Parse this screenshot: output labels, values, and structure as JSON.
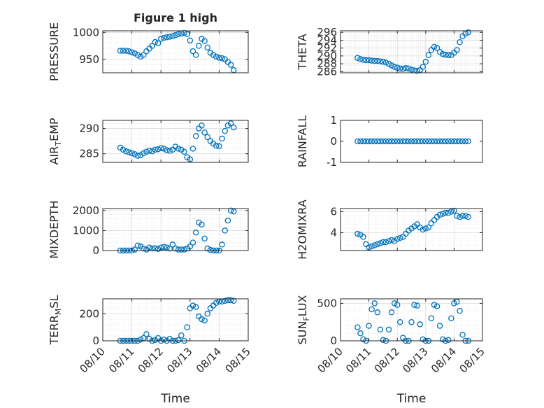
{
  "figure": {
    "title": "Figure 1 high",
    "xlabel_left": "Time",
    "xlabel_right": "Time"
  },
  "style": {
    "marker_color": "#0072BD",
    "axis_color": "#262626",
    "grid_color": "#dcdcdc"
  },
  "chart_data": [
    {
      "type": "scatter",
      "id": "pressure",
      "title": "Figure 1 high",
      "ylabel": "PRESSURE",
      "xlabel": "",
      "xticks": [
        "08/10",
        "08/11",
        "08/12",
        "08/13",
        "08/14",
        "08/15"
      ],
      "xlim": [
        0,
        5
      ],
      "ylim": [
        925,
        1003
      ],
      "yticks": [
        950,
        1000
      ],
      "grid": true,
      "x": [
        0.6,
        0.7,
        0.8,
        0.9,
        1.0,
        1.1,
        1.2,
        1.3,
        1.4,
        1.5,
        1.6,
        1.7,
        1.8,
        1.9,
        2.0,
        2.1,
        2.2,
        2.3,
        2.4,
        2.5,
        2.6,
        2.7,
        2.8,
        2.9,
        3.0,
        3.1,
        3.2,
        3.3,
        3.4,
        3.5,
        3.6,
        3.7,
        3.8,
        3.9,
        4.0,
        4.1,
        4.2,
        4.3,
        4.4,
        4.5
      ],
      "y": [
        966,
        966,
        966,
        965,
        963,
        961,
        958,
        955,
        958,
        965,
        970,
        975,
        982,
        980,
        988,
        990,
        991,
        992,
        993,
        995,
        997,
        998,
        999,
        997,
        985,
        965,
        958,
        975,
        988,
        984,
        972,
        962,
        958,
        955,
        953,
        952,
        950,
        945,
        940,
        930
      ]
    },
    {
      "type": "scatter",
      "id": "theta",
      "title": "",
      "ylabel": "THETA",
      "xlabel": "",
      "xticks": [
        "08/10",
        "08/11",
        "08/12",
        "08/13",
        "08/14",
        "08/15"
      ],
      "xlim": [
        0,
        5
      ],
      "ylim": [
        285.7,
        296.4
      ],
      "yticks": [
        286,
        288,
        290,
        292,
        294,
        296
      ],
      "grid": true,
      "x": [
        0.6,
        0.7,
        0.8,
        0.9,
        1.0,
        1.1,
        1.2,
        1.3,
        1.4,
        1.5,
        1.6,
        1.7,
        1.8,
        1.9,
        2.0,
        2.1,
        2.2,
        2.3,
        2.4,
        2.5,
        2.6,
        2.7,
        2.8,
        2.9,
        3.0,
        3.1,
        3.2,
        3.3,
        3.4,
        3.5,
        3.6,
        3.7,
        3.8,
        3.9,
        4.0,
        4.1,
        4.2,
        4.3,
        4.4,
        4.5
      ],
      "y": [
        289.5,
        289.2,
        289.0,
        288.9,
        288.9,
        288.8,
        288.7,
        288.7,
        288.6,
        288.5,
        288.3,
        288.0,
        287.6,
        287.2,
        287.0,
        286.8,
        286.7,
        286.9,
        286.8,
        286.5,
        286.3,
        286.2,
        286.4,
        287.2,
        288.5,
        290.2,
        291.5,
        292.3,
        292.0,
        291.0,
        290.5,
        290.3,
        290.2,
        290.2,
        290.8,
        291.5,
        293.5,
        295.0,
        295.7,
        296.0
      ]
    },
    {
      "type": "scatter",
      "id": "air_temp",
      "title": "",
      "ylabel": "AIR_TEMP",
      "xlabel": "",
      "xticks": [
        "08/10",
        "08/11",
        "08/12",
        "08/13",
        "08/14",
        "08/15"
      ],
      "xlim": [
        0,
        5
      ],
      "ylim": [
        283.3,
        291.6
      ],
      "yticks": [
        285,
        290
      ],
      "grid": true,
      "x": [
        0.6,
        0.7,
        0.8,
        0.9,
        1.0,
        1.1,
        1.2,
        1.3,
        1.4,
        1.5,
        1.6,
        1.7,
        1.8,
        1.9,
        2.0,
        2.1,
        2.2,
        2.3,
        2.4,
        2.5,
        2.6,
        2.7,
        2.8,
        2.9,
        3.0,
        3.1,
        3.2,
        3.3,
        3.4,
        3.5,
        3.6,
        3.7,
        3.8,
        3.9,
        4.0,
        4.1,
        4.2,
        4.3,
        4.4,
        4.5
      ],
      "y": [
        286.2,
        285.8,
        285.5,
        285.3,
        285.1,
        284.9,
        284.6,
        284.7,
        285.1,
        285.4,
        285.6,
        285.5,
        285.8,
        285.9,
        286.1,
        286.0,
        285.7,
        285.6,
        285.8,
        286.4,
        286.0,
        285.8,
        285.4,
        284.3,
        283.9,
        286.0,
        288.5,
        290.0,
        290.6,
        289.2,
        288.3,
        287.5,
        287.0,
        286.6,
        286.5,
        288.0,
        289.5,
        290.6,
        291.0,
        290.2
      ]
    },
    {
      "type": "scatter",
      "id": "rainfall",
      "title": "",
      "ylabel": "RAINFALL",
      "xlabel": "",
      "xticks": [
        "08/10",
        "08/11",
        "08/12",
        "08/13",
        "08/14",
        "08/15"
      ],
      "xlim": [
        0,
        5
      ],
      "ylim": [
        -1,
        1
      ],
      "yticks": [
        -1,
        0,
        1
      ],
      "grid": false,
      "x": [
        0.6,
        0.7,
        0.8,
        0.9,
        1.0,
        1.1,
        1.2,
        1.3,
        1.4,
        1.5,
        1.6,
        1.7,
        1.8,
        1.9,
        2.0,
        2.1,
        2.2,
        2.3,
        2.4,
        2.5,
        2.6,
        2.7,
        2.8,
        2.9,
        3.0,
        3.1,
        3.2,
        3.3,
        3.4,
        3.5,
        3.6,
        3.7,
        3.8,
        3.9,
        4.0,
        4.1,
        4.2,
        4.3,
        4.4,
        4.5
      ],
      "y": [
        0,
        0,
        0,
        0,
        0,
        0,
        0,
        0,
        0,
        0,
        0,
        0,
        0,
        0,
        0,
        0,
        0,
        0,
        0,
        0,
        0,
        0,
        0,
        0,
        0,
        0,
        0,
        0,
        0,
        0,
        0,
        0,
        0,
        0,
        0,
        0,
        0,
        0,
        0,
        0
      ]
    },
    {
      "type": "scatter",
      "id": "mixdepth",
      "title": "",
      "ylabel": "MIXDEPTH",
      "xlabel": "",
      "xticks": [
        "08/10",
        "08/11",
        "08/12",
        "08/13",
        "08/14",
        "08/15"
      ],
      "xlim": [
        0,
        5
      ],
      "ylim": [
        0,
        2100
      ],
      "yticks": [
        0,
        1000,
        2000
      ],
      "grid": true,
      "x": [
        0.6,
        0.7,
        0.8,
        0.9,
        1.0,
        1.1,
        1.2,
        1.3,
        1.4,
        1.5,
        1.6,
        1.7,
        1.8,
        1.9,
        2.0,
        2.1,
        2.2,
        2.3,
        2.4,
        2.5,
        2.6,
        2.7,
        2.8,
        2.9,
        3.0,
        3.1,
        3.2,
        3.3,
        3.4,
        3.5,
        3.6,
        3.7,
        3.8,
        3.9,
        4.0,
        4.1,
        4.2,
        4.3,
        4.4,
        4.5
      ],
      "y": [
        0,
        0,
        0,
        0,
        0,
        50,
        250,
        200,
        100,
        50,
        150,
        100,
        120,
        80,
        150,
        180,
        150,
        100,
        300,
        100,
        50,
        50,
        50,
        100,
        200,
        400,
        900,
        1400,
        1300,
        600,
        100,
        30,
        0,
        0,
        0,
        300,
        1000,
        1500,
        2000,
        1950
      ]
    },
    {
      "type": "scatter",
      "id": "h2omixra",
      "title": "",
      "ylabel": "H2OMIXRA",
      "xlabel": "",
      "xticks": [
        "08/10",
        "08/11",
        "08/12",
        "08/13",
        "08/14",
        "08/15"
      ],
      "xlim": [
        0,
        5
      ],
      "ylim": [
        2.3,
        6.3
      ],
      "yticks": [
        4,
        6
      ],
      "grid": true,
      "x": [
        0.6,
        0.7,
        0.8,
        0.9,
        1.0,
        1.1,
        1.2,
        1.3,
        1.4,
        1.5,
        1.6,
        1.7,
        1.8,
        1.9,
        2.0,
        2.1,
        2.2,
        2.3,
        2.4,
        2.5,
        2.6,
        2.7,
        2.8,
        2.9,
        3.0,
        3.1,
        3.2,
        3.3,
        3.4,
        3.5,
        3.6,
        3.7,
        3.8,
        3.9,
        4.0,
        4.1,
        4.2,
        4.3,
        4.4,
        4.5
      ],
      "y": [
        3.9,
        3.8,
        3.6,
        2.9,
        2.6,
        2.7,
        2.8,
        2.9,
        3.0,
        3.1,
        3.1,
        3.2,
        3.3,
        3.2,
        3.4,
        3.5,
        3.6,
        3.9,
        4.2,
        4.4,
        4.6,
        4.8,
        4.5,
        4.3,
        4.4,
        4.5,
        4.9,
        5.2,
        5.5,
        5.7,
        5.8,
        5.9,
        5.9,
        6.0,
        6.1,
        5.6,
        5.5,
        5.6,
        5.6,
        5.5
      ]
    },
    {
      "type": "scatter",
      "id": "terr_msl",
      "title": "",
      "ylabel": "TERR_MSL",
      "xlabel": "Time",
      "xticks": [
        "08/10",
        "08/11",
        "08/12",
        "08/13",
        "08/14",
        "08/15"
      ],
      "xlim": [
        0,
        5
      ],
      "ylim": [
        0,
        310
      ],
      "yticks": [
        0,
        200
      ],
      "grid": true,
      "x": [
        0.6,
        0.7,
        0.8,
        0.9,
        1.0,
        1.1,
        1.2,
        1.3,
        1.4,
        1.5,
        1.6,
        1.7,
        1.8,
        1.9,
        2.0,
        2.1,
        2.2,
        2.3,
        2.4,
        2.5,
        2.6,
        2.7,
        2.8,
        2.9,
        3.0,
        3.1,
        3.2,
        3.3,
        3.4,
        3.5,
        3.6,
        3.7,
        3.8,
        3.9,
        4.0,
        4.1,
        4.2,
        4.3,
        4.4,
        4.5
      ],
      "y": [
        0,
        0,
        0,
        0,
        0,
        0,
        0,
        10,
        20,
        50,
        15,
        0,
        5,
        20,
        0,
        10,
        0,
        15,
        0,
        0,
        5,
        40,
        0,
        100,
        240,
        260,
        250,
        180,
        160,
        150,
        200,
        240,
        260,
        280,
        290,
        290,
        295,
        300,
        300,
        295
      ]
    },
    {
      "type": "scatter",
      "id": "sun_flux",
      "title": "",
      "ylabel": "SUN_FLUX",
      "xlabel": "Time",
      "xticks": [
        "08/10",
        "08/11",
        "08/12",
        "08/13",
        "08/14",
        "08/15"
      ],
      "xlim": [
        0,
        5
      ],
      "ylim": [
        0,
        560
      ],
      "yticks": [
        0,
        500
      ],
      "grid": true,
      "x": [
        0.6,
        0.7,
        0.8,
        0.9,
        1.0,
        1.1,
        1.2,
        1.3,
        1.4,
        1.5,
        1.6,
        1.7,
        1.8,
        1.9,
        2.0,
        2.1,
        2.2,
        2.3,
        2.4,
        2.5,
        2.6,
        2.7,
        2.8,
        2.9,
        3.0,
        3.1,
        3.2,
        3.3,
        3.4,
        3.5,
        3.6,
        3.7,
        3.8,
        3.9,
        4.0,
        4.1,
        4.2,
        4.3,
        4.4,
        4.5
      ],
      "y": [
        180,
        100,
        20,
        0,
        200,
        420,
        500,
        380,
        150,
        10,
        0,
        150,
        380,
        500,
        480,
        250,
        40,
        0,
        0,
        250,
        480,
        470,
        220,
        20,
        0,
        0,
        300,
        480,
        460,
        200,
        20,
        0,
        10,
        300,
        500,
        520,
        400,
        80,
        0,
        0
      ]
    }
  ]
}
